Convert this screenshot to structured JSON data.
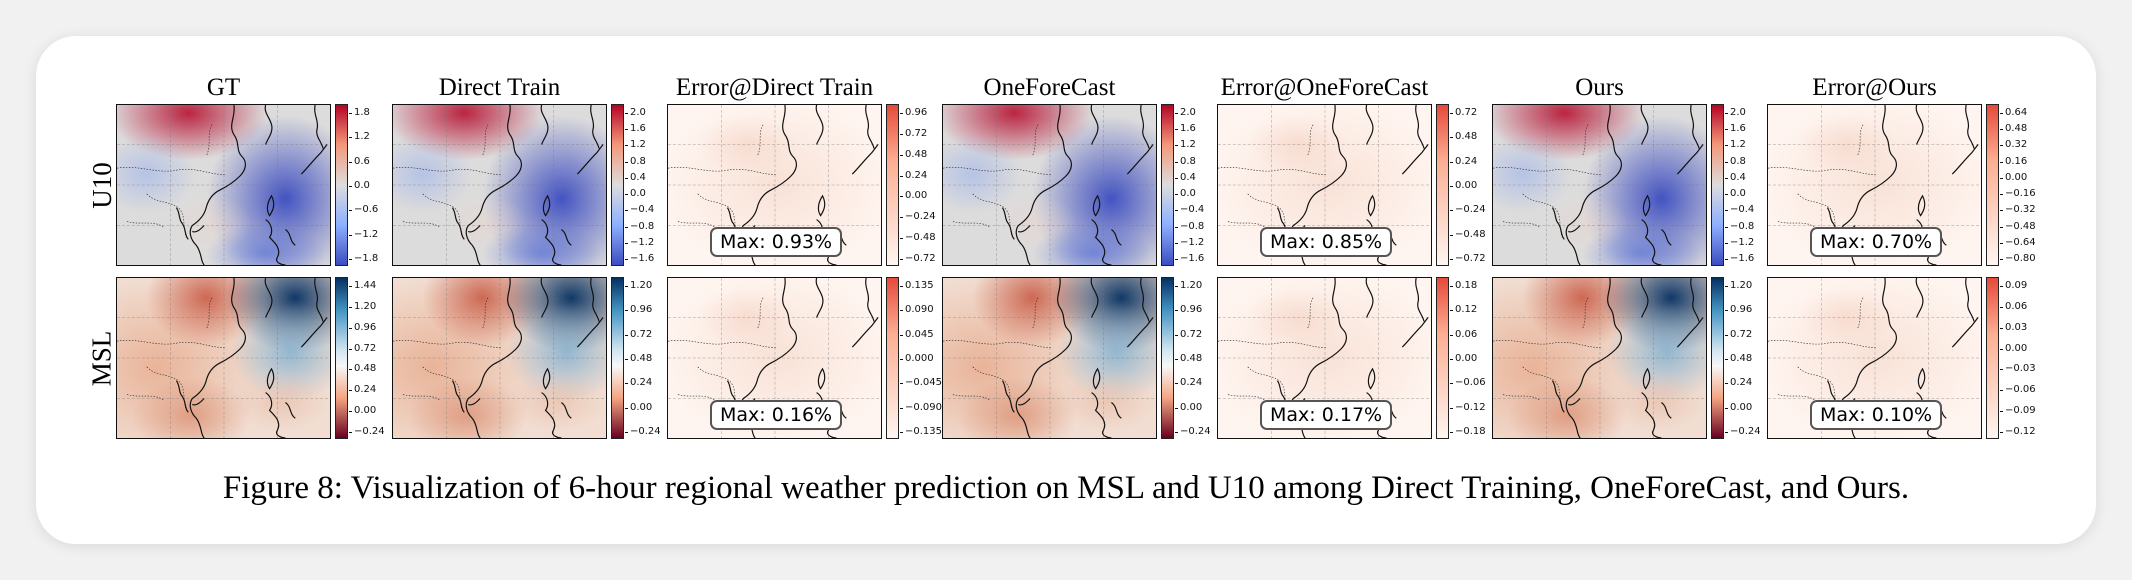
{
  "figure": {
    "caption": "Figure 8: Visualization of 6-hour regional weather prediction on MSL and U10 among Direct Training, OneForeCast, and Ours.",
    "columns": [
      "GT",
      "Direct Train",
      "Error@Direct Train",
      "OneForeCast",
      "Error@OneForeCast",
      "Ours",
      "Error@Ours"
    ],
    "rows": [
      "U10",
      "MSL"
    ],
    "colors": {
      "coolwarm_low": "#3b4cc0",
      "coolwarm_mid": "#dddcdc",
      "coolwarm_high": "#b40426",
      "rdbu_low": "#67001f",
      "rdbu_mid": "#f7f7f7",
      "rdbu_high": "#053061",
      "error_low": "#fff5f0",
      "error_high": "#e64a3a"
    },
    "panels": [
      {
        "row": "U10",
        "col": "GT",
        "colormap": "coolwarm",
        "colorbar_ticks": [
          "1.8",
          "1.2",
          "0.6",
          "0.0",
          "−0.6",
          "−1.2",
          "−1.8"
        ]
      },
      {
        "row": "U10",
        "col": "Direct Train",
        "colormap": "coolwarm",
        "colorbar_ticks": [
          "2.0",
          "1.6",
          "1.2",
          "0.8",
          "0.4",
          "0.0",
          "−0.4",
          "−0.8",
          "−1.2",
          "−1.6"
        ]
      },
      {
        "row": "U10",
        "col": "Error@Direct Train",
        "colormap": "error",
        "max_label": "Max: 0.93%",
        "colorbar_ticks": [
          "0.96",
          "0.72",
          "0.48",
          "0.24",
          "0.00",
          "−0.24",
          "−0.48",
          "−0.72"
        ]
      },
      {
        "row": "U10",
        "col": "OneForeCast",
        "colormap": "coolwarm",
        "colorbar_ticks": [
          "2.0",
          "1.6",
          "1.2",
          "0.8",
          "0.4",
          "0.0",
          "−0.4",
          "−0.8",
          "−1.2",
          "−1.6"
        ]
      },
      {
        "row": "U10",
        "col": "Error@OneForeCast",
        "colormap": "error",
        "max_label": "Max: 0.85%",
        "colorbar_ticks": [
          "0.72",
          "0.48",
          "0.24",
          "0.00",
          "−0.24",
          "−0.48",
          "−0.72"
        ]
      },
      {
        "row": "U10",
        "col": "Ours",
        "colormap": "coolwarm",
        "colorbar_ticks": [
          "2.0",
          "1.6",
          "1.2",
          "0.8",
          "0.4",
          "0.0",
          "−0.4",
          "−0.8",
          "−1.2",
          "−1.6"
        ]
      },
      {
        "row": "U10",
        "col": "Error@Ours",
        "colormap": "error",
        "max_label": "Max: 0.70%",
        "colorbar_ticks": [
          "0.64",
          "0.48",
          "0.32",
          "0.16",
          "0.00",
          "−0.16",
          "−0.32",
          "−0.48",
          "−0.64",
          "−0.80"
        ]
      },
      {
        "row": "MSL",
        "col": "GT",
        "colormap": "rdbu",
        "colorbar_ticks": [
          "1.44",
          "1.20",
          "0.96",
          "0.72",
          "0.48",
          "0.24",
          "0.00",
          "−0.24"
        ]
      },
      {
        "row": "MSL",
        "col": "Direct Train",
        "colormap": "rdbu",
        "colorbar_ticks": [
          "1.20",
          "0.96",
          "0.72",
          "0.48",
          "0.24",
          "0.00",
          "−0.24"
        ]
      },
      {
        "row": "MSL",
        "col": "Error@Direct Train",
        "colormap": "error",
        "max_label": "Max: 0.16%",
        "colorbar_ticks": [
          "0.135",
          "0.090",
          "0.045",
          "0.000",
          "−0.045",
          "−0.090",
          "−0.135"
        ]
      },
      {
        "row": "MSL",
        "col": "OneForeCast",
        "colormap": "rdbu",
        "colorbar_ticks": [
          "1.20",
          "0.96",
          "0.72",
          "0.48",
          "0.24",
          "0.00",
          "−0.24"
        ]
      },
      {
        "row": "MSL",
        "col": "Error@OneForeCast",
        "colormap": "error",
        "max_label": "Max: 0.17%",
        "colorbar_ticks": [
          "0.18",
          "0.12",
          "0.06",
          "0.00",
          "−0.06",
          "−0.12",
          "−0.18"
        ]
      },
      {
        "row": "MSL",
        "col": "Ours",
        "colormap": "rdbu",
        "colorbar_ticks": [
          "1.20",
          "0.96",
          "0.72",
          "0.48",
          "0.24",
          "0.00",
          "−0.24"
        ]
      },
      {
        "row": "MSL",
        "col": "Error@Ours",
        "colormap": "error",
        "max_label": "Max: 0.10%",
        "colorbar_ticks": [
          "0.09",
          "0.06",
          "0.03",
          "0.00",
          "−0.03",
          "−0.06",
          "−0.09",
          "−0.12"
        ]
      }
    ]
  }
}
